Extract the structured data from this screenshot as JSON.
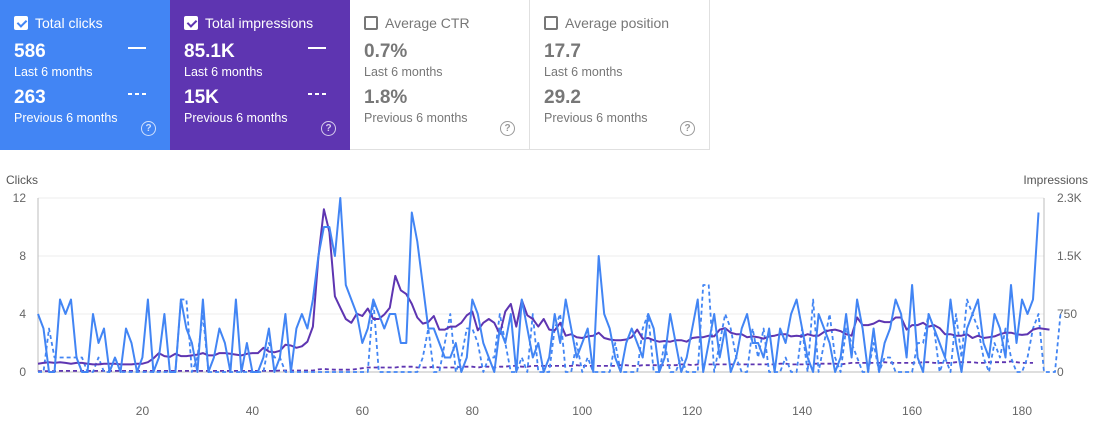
{
  "cards": {
    "clicks": {
      "title": "Total clicks",
      "value_current": "586",
      "label_current": "Last 6 months",
      "value_previous": "263",
      "label_previous": "Previous 6 months",
      "checked": true,
      "color": "#4285f4"
    },
    "impressions": {
      "title": "Total impressions",
      "value_current": "85.1K",
      "label_current": "Last 6 months",
      "value_previous": "15K",
      "label_previous": "Previous 6 months",
      "checked": true,
      "color": "#5e35b1"
    },
    "ctr": {
      "title": "Average CTR",
      "value_current": "0.7%",
      "label_current": "Last 6 months",
      "value_previous": "1.8%",
      "label_previous": "Previous 6 months",
      "checked": false
    },
    "position": {
      "title": "Average position",
      "value_current": "17.7",
      "label_current": "Last 6 months",
      "value_previous": "29.2",
      "label_previous": "Previous 6 months",
      "checked": false
    }
  },
  "chart_data": {
    "type": "line",
    "ylabel_left": "Clicks",
    "ylabel_right": "Impressions",
    "y_left_ticks": [
      "0",
      "4",
      "8",
      "12"
    ],
    "y_right_ticks": [
      "0",
      "750",
      "1.5K",
      "2.3K"
    ],
    "x_ticks": [
      "20",
      "40",
      "60",
      "80",
      "100",
      "120",
      "140",
      "160",
      "180"
    ],
    "x_range": [
      1,
      184
    ],
    "y_left_range": [
      0,
      12
    ],
    "y_right_range": [
      0,
      2300
    ],
    "grid": true,
    "series": [
      {
        "name": "Total clicks",
        "period": "Last 6 months",
        "axis": "left",
        "style": "solid",
        "color": "#4285f4",
        "values": [
          4,
          3,
          0,
          0,
          5,
          4,
          5,
          1,
          0,
          0,
          4,
          2,
          3,
          0,
          1,
          0,
          3,
          2,
          0,
          1,
          5,
          0,
          1,
          4,
          0,
          0,
          5,
          3,
          2,
          0,
          5,
          0,
          1,
          3,
          2,
          0,
          5,
          0,
          2,
          0,
          0,
          1,
          3,
          0,
          1,
          4,
          0,
          3,
          4,
          3,
          5,
          8,
          10,
          10,
          8,
          12,
          6,
          5,
          4,
          2,
          3,
          5,
          4,
          3,
          4,
          4,
          2,
          2,
          11,
          9,
          6,
          3,
          3,
          2,
          1,
          1,
          2,
          0,
          1,
          5,
          4,
          2,
          1,
          0,
          3,
          2,
          4,
          0,
          5,
          3,
          1,
          2,
          0,
          1,
          4,
          2,
          5,
          3,
          1,
          2,
          3,
          0,
          8,
          4,
          3,
          1,
          0,
          2,
          3,
          2,
          1,
          4,
          3,
          0,
          1,
          4,
          2,
          0,
          1,
          3,
          5,
          0,
          2,
          4,
          1,
          3,
          0,
          1,
          3,
          4,
          2,
          2,
          1,
          3,
          0,
          3,
          2,
          4,
          5,
          3,
          1,
          0,
          4,
          3,
          2,
          0,
          1,
          4,
          1,
          5,
          3,
          0,
          3,
          0,
          2,
          3,
          5,
          4,
          1,
          6,
          1,
          0,
          4,
          3,
          2,
          1,
          5,
          2,
          0,
          3,
          4,
          5,
          2,
          1,
          4,
          3,
          1,
          6,
          2,
          5,
          4,
          5,
          11
        ]
      },
      {
        "name": "Total clicks",
        "period": "Previous 6 months",
        "axis": "left",
        "style": "dashed",
        "color": "#4285f4",
        "values": [
          0,
          0,
          3,
          1,
          1,
          1,
          1,
          1,
          1,
          0,
          0,
          1,
          0,
          0,
          1,
          0,
          0,
          0,
          0,
          0,
          0,
          0,
          0,
          0,
          0,
          0,
          5,
          5,
          0,
          1,
          4,
          0,
          0,
          0,
          0,
          0,
          0,
          0,
          0,
          0,
          0,
          0,
          2,
          1,
          1,
          0,
          0,
          0,
          0,
          0,
          0,
          0,
          0,
          0,
          0,
          0,
          0,
          0,
          0,
          0,
          0,
          5,
          0,
          0,
          0,
          0,
          0,
          0,
          0,
          0,
          1,
          3,
          0,
          0,
          2,
          4,
          0,
          1,
          3,
          3,
          2,
          0,
          1,
          1,
          4,
          2,
          0,
          0,
          1,
          0,
          4,
          0,
          0,
          0,
          3,
          4,
          0,
          0,
          2,
          0,
          1,
          0,
          0,
          0,
          0,
          2,
          0,
          0,
          0,
          0,
          3,
          4,
          0,
          0,
          2,
          0,
          0,
          1,
          0,
          0,
          0,
          6,
          6,
          0,
          2,
          4,
          3,
          1,
          0,
          0,
          3,
          1,
          3,
          0,
          0,
          0,
          1,
          0,
          0,
          3,
          0,
          5,
          0,
          2,
          4,
          1,
          0,
          3,
          2,
          1,
          0,
          0,
          2,
          0,
          1,
          1,
          0,
          0,
          0,
          0,
          2,
          2,
          4,
          3,
          0,
          1,
          0,
          4,
          1,
          5,
          4,
          3,
          1,
          0,
          2,
          1,
          3,
          1,
          0,
          0,
          1,
          3,
          4,
          0,
          0,
          0,
          4
        ]
      },
      {
        "name": "Total impressions",
        "period": "Last 6 months",
        "axis": "right",
        "style": "solid",
        "color": "#5e35b1",
        "values": [
          110,
          120,
          130,
          120,
          130,
          120,
          110,
          120,
          120,
          110,
          100,
          100,
          110,
          110,
          110,
          100,
          100,
          100,
          110,
          110,
          130,
          180,
          250,
          210,
          200,
          240,
          210,
          210,
          220,
          230,
          250,
          220,
          220,
          250,
          250,
          240,
          230,
          220,
          240,
          250,
          250,
          320,
          270,
          260,
          280,
          360,
          350,
          320,
          340,
          400,
          600,
          1520,
          2150,
          1850,
          1000,
          850,
          700,
          650,
          770,
          740,
          840,
          700,
          700,
          760,
          850,
          1270,
          1080,
          1030,
          900,
          720,
          640,
          660,
          740,
          560,
          560,
          600,
          600,
          650,
          750,
          800,
          550,
          650,
          700,
          650,
          500,
          800,
          900,
          600,
          950,
          750,
          700,
          600,
          700,
          560,
          550,
          650,
          480,
          500,
          460,
          450,
          470,
          480,
          520,
          450,
          430,
          420,
          420,
          430,
          460,
          560,
          440,
          450,
          420,
          400,
          410,
          400,
          420,
          420,
          400,
          450,
          460,
          460,
          480,
          470,
          560,
          580,
          520,
          500,
          500,
          460,
          470,
          460,
          440,
          470,
          480,
          500,
          500,
          470,
          480,
          470,
          500,
          480,
          480,
          530,
          550,
          560,
          540,
          500,
          480,
          720,
          620,
          620,
          640,
          680,
          660,
          660,
          720,
          720,
          560,
          620,
          620,
          650,
          600,
          620,
          580,
          500,
          500,
          480,
          480,
          500,
          450,
          480,
          450,
          460,
          470,
          500,
          520,
          520,
          500,
          490,
          500,
          560,
          580,
          570,
          560
        ]
      },
      {
        "name": "Total impressions",
        "period": "Previous 6 months",
        "axis": "right",
        "style": "dashed",
        "color": "#5e35b1",
        "values": [
          10,
          10,
          10,
          10,
          15,
          15,
          15,
          15,
          15,
          15,
          15,
          15,
          15,
          15,
          15,
          15,
          15,
          15,
          15,
          15,
          15,
          15,
          15,
          15,
          15,
          15,
          15,
          15,
          15,
          15,
          15,
          15,
          15,
          15,
          15,
          15,
          15,
          15,
          15,
          15,
          15,
          15,
          15,
          15,
          20,
          20,
          20,
          20,
          20,
          20,
          20,
          35,
          40,
          35,
          30,
          30,
          30,
          30,
          40,
          50,
          60,
          60,
          60,
          60,
          60,
          60,
          70,
          70,
          70,
          60,
          60,
          60,
          70,
          60,
          60,
          60,
          60,
          70,
          70,
          70,
          60,
          70,
          70,
          60,
          70,
          70,
          80,
          80,
          70,
          70,
          80,
          80,
          80,
          80,
          80,
          80,
          80,
          80,
          90,
          80,
          80,
          80,
          80,
          80,
          80,
          80,
          90,
          90,
          80,
          80,
          90,
          90,
          90,
          90,
          90,
          90,
          90,
          100,
          100,
          90,
          100,
          100,
          100,
          100,
          100,
          100,
          100,
          100,
          100,
          100,
          100,
          100,
          100,
          100,
          100,
          110,
          110,
          100,
          100,
          100,
          100,
          110,
          110,
          110,
          110,
          110,
          100,
          110,
          120,
          120,
          120,
          120,
          120,
          120,
          130,
          120,
          120,
          120,
          120,
          120,
          120,
          130,
          130,
          120,
          120,
          120,
          120,
          130,
          130,
          130,
          130,
          120,
          120,
          130,
          130,
          130,
          130,
          140,
          130,
          120,
          120,
          120
        ]
      }
    ]
  }
}
